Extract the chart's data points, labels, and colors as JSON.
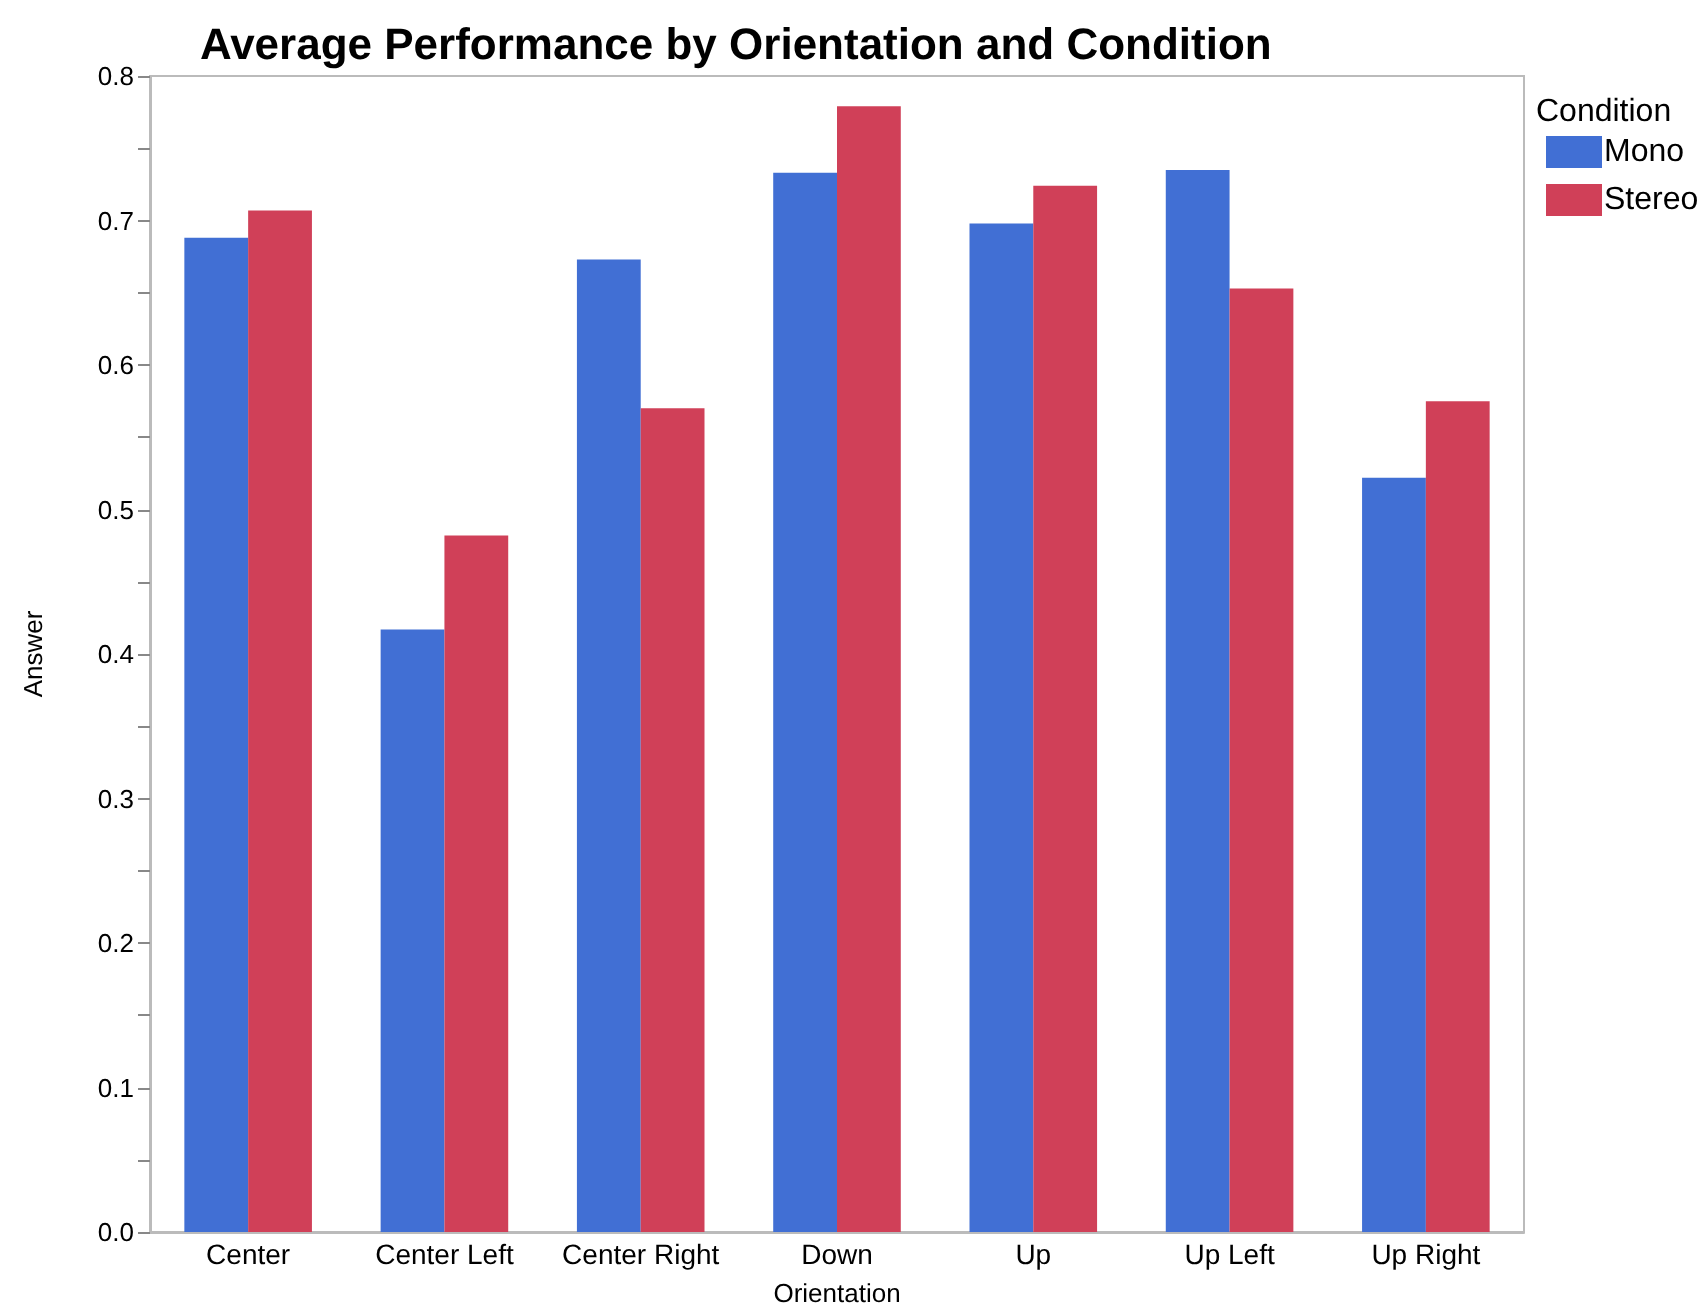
{
  "chart_data": {
    "type": "bar",
    "title": "Average Performance by Orientation and Condition",
    "xlabel": "Orientation",
    "ylabel": "Answer",
    "legend_title": "Condition",
    "categories": [
      "Center",
      "Center Left",
      "Center Right",
      "Down",
      "Up",
      "Up Left",
      "Up Right"
    ],
    "series": [
      {
        "name": "Mono",
        "color": "#416fd4",
        "values": [
          0.688,
          0.417,
          0.673,
          0.733,
          0.698,
          0.735,
          0.522
        ]
      },
      {
        "name": "Stereo",
        "color": "#d04058",
        "values": [
          0.707,
          0.482,
          0.57,
          0.779,
          0.724,
          0.653,
          0.575
        ]
      }
    ],
    "ylim": [
      0,
      0.8
    ],
    "yticks": [
      {
        "value": 0,
        "label": "0.0"
      },
      {
        "value": 0.05,
        "label": null
      },
      {
        "value": 0.1,
        "label": "0.1"
      },
      {
        "value": 0.15,
        "label": null
      },
      {
        "value": 0.2,
        "label": "0.2"
      },
      {
        "value": 0.25,
        "label": null
      },
      {
        "value": 0.3,
        "label": "0.3"
      },
      {
        "value": 0.35,
        "label": null
      },
      {
        "value": 0.4,
        "label": "0.4"
      },
      {
        "value": 0.45,
        "label": null
      },
      {
        "value": 0.5,
        "label": "0.5"
      },
      {
        "value": 0.55,
        "label": null
      },
      {
        "value": 0.6,
        "label": "0.6"
      },
      {
        "value": 0.65,
        "label": null
      },
      {
        "value": 0.7,
        "label": "0.7"
      },
      {
        "value": 0.75,
        "label": null
      },
      {
        "value": 0.8,
        "label": "0.8"
      }
    ],
    "grid": false,
    "legend": "top right"
  }
}
